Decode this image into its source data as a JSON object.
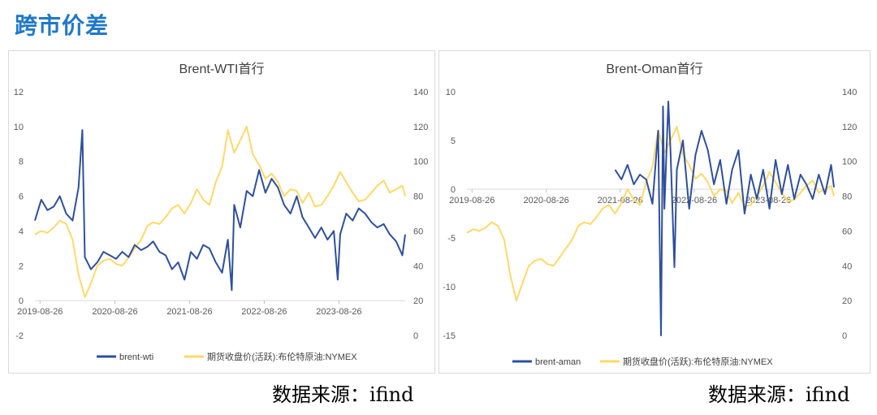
{
  "page": {
    "title": "跨市价差"
  },
  "sources": [
    "数据来源：ifind",
    "数据来源：ifind"
  ],
  "colors": {
    "series_primary": "#2e4f9e",
    "series_secondary": "#ffd966",
    "axis_text": "#595959"
  },
  "chart_data": [
    {
      "type": "line",
      "title": "Brent-WTI首行",
      "x_ticks": [
        "2019-08-26",
        "2020-08-26",
        "2021-08-26",
        "2022-08-26",
        "2023-08-26"
      ],
      "y_left": {
        "min": -2,
        "max": 12,
        "ticks": [
          -2,
          0,
          2,
          4,
          6,
          8,
          10,
          12
        ]
      },
      "y_right": {
        "min": 0,
        "max": 140,
        "ticks": [
          0,
          20,
          40,
          60,
          80,
          100,
          120,
          140
        ]
      },
      "x_range": [
        "2019-08-01",
        "2024-07-15"
      ],
      "grid": false,
      "legend_position": "bottom",
      "series": [
        {
          "name": "brent-wti",
          "axis": "left",
          "color": "#2e4f9e",
          "points": [
            [
              "2019-08-01",
              4.6
            ],
            [
              "2019-09-01",
              5.8
            ],
            [
              "2019-10-01",
              5.2
            ],
            [
              "2019-11-01",
              5.4
            ],
            [
              "2019-12-01",
              6.0
            ],
            [
              "2020-01-01",
              5.0
            ],
            [
              "2020-02-01",
              4.6
            ],
            [
              "2020-03-01",
              6.5
            ],
            [
              "2020-03-20",
              9.8
            ],
            [
              "2020-04-01",
              2.5
            ],
            [
              "2020-05-01",
              1.8
            ],
            [
              "2020-06-01",
              2.2
            ],
            [
              "2020-07-01",
              2.8
            ],
            [
              "2020-08-01",
              2.6
            ],
            [
              "2020-09-01",
              2.4
            ],
            [
              "2020-10-01",
              2.8
            ],
            [
              "2020-11-01",
              2.5
            ],
            [
              "2020-12-01",
              3.2
            ],
            [
              "2021-01-01",
              2.9
            ],
            [
              "2021-02-01",
              3.1
            ],
            [
              "2021-03-01",
              3.4
            ],
            [
              "2021-04-01",
              2.8
            ],
            [
              "2021-05-01",
              2.6
            ],
            [
              "2021-06-01",
              1.8
            ],
            [
              "2021-07-01",
              2.2
            ],
            [
              "2021-08-01",
              1.2
            ],
            [
              "2021-09-01",
              2.8
            ],
            [
              "2021-10-01",
              2.4
            ],
            [
              "2021-11-01",
              3.2
            ],
            [
              "2021-12-01",
              3.0
            ],
            [
              "2022-01-01",
              2.2
            ],
            [
              "2022-02-01",
              1.6
            ],
            [
              "2022-03-01",
              3.5
            ],
            [
              "2022-03-20",
              0.6
            ],
            [
              "2022-04-01",
              5.5
            ],
            [
              "2022-05-01",
              4.2
            ],
            [
              "2022-06-01",
              6.3
            ],
            [
              "2022-07-01",
              6.0
            ],
            [
              "2022-08-01",
              7.5
            ],
            [
              "2022-09-01",
              6.2
            ],
            [
              "2022-10-01",
              7.0
            ],
            [
              "2022-11-01",
              6.5
            ],
            [
              "2022-12-01",
              5.5
            ],
            [
              "2023-01-01",
              5.0
            ],
            [
              "2023-02-01",
              6.0
            ],
            [
              "2023-03-01",
              4.8
            ],
            [
              "2023-04-01",
              4.2
            ],
            [
              "2023-05-01",
              3.6
            ],
            [
              "2023-06-01",
              4.2
            ],
            [
              "2023-07-01",
              3.5
            ],
            [
              "2023-08-01",
              4.0
            ],
            [
              "2023-08-20",
              1.2
            ],
            [
              "2023-09-01",
              3.8
            ],
            [
              "2023-10-01",
              5.0
            ],
            [
              "2023-11-01",
              4.6
            ],
            [
              "2023-12-01",
              5.3
            ],
            [
              "2024-01-01",
              5.0
            ],
            [
              "2024-02-01",
              4.5
            ],
            [
              "2024-03-01",
              4.2
            ],
            [
              "2024-04-01",
              4.4
            ],
            [
              "2024-05-01",
              3.8
            ],
            [
              "2024-06-01",
              3.4
            ],
            [
              "2024-07-01",
              2.6
            ],
            [
              "2024-07-15",
              3.8
            ]
          ]
        },
        {
          "name": "期货收盘价(活跃):布伦特原油:NYMEX",
          "axis": "right",
          "color": "#ffd966",
          "points": [
            [
              "2019-08-01",
              58
            ],
            [
              "2019-09-01",
              60
            ],
            [
              "2019-10-01",
              59
            ],
            [
              "2019-11-01",
              62
            ],
            [
              "2019-12-01",
              66
            ],
            [
              "2020-01-01",
              64
            ],
            [
              "2020-02-01",
              55
            ],
            [
              "2020-03-01",
              35
            ],
            [
              "2020-04-01",
              22
            ],
            [
              "2020-05-01",
              30
            ],
            [
              "2020-06-01",
              40
            ],
            [
              "2020-07-01",
              43
            ],
            [
              "2020-08-01",
              44
            ],
            [
              "2020-09-01",
              41
            ],
            [
              "2020-10-01",
              40
            ],
            [
              "2020-11-01",
              45
            ],
            [
              "2020-12-01",
              50
            ],
            [
              "2021-01-01",
              55
            ],
            [
              "2021-02-01",
              63
            ],
            [
              "2021-03-01",
              65
            ],
            [
              "2021-04-01",
              64
            ],
            [
              "2021-05-01",
              68
            ],
            [
              "2021-06-01",
              73
            ],
            [
              "2021-07-01",
              75
            ],
            [
              "2021-08-01",
              70
            ],
            [
              "2021-09-01",
              76
            ],
            [
              "2021-10-01",
              84
            ],
            [
              "2021-11-01",
              78
            ],
            [
              "2021-12-01",
              75
            ],
            [
              "2022-01-01",
              88
            ],
            [
              "2022-02-01",
              97
            ],
            [
              "2022-03-01",
              118
            ],
            [
              "2022-04-01",
              105
            ],
            [
              "2022-05-01",
              112
            ],
            [
              "2022-06-01",
              120
            ],
            [
              "2022-07-01",
              104
            ],
            [
              "2022-08-01",
              98
            ],
            [
              "2022-09-01",
              90
            ],
            [
              "2022-10-01",
              93
            ],
            [
              "2022-11-01",
              88
            ],
            [
              "2022-12-01",
              80
            ],
            [
              "2023-01-01",
              84
            ],
            [
              "2023-02-01",
              83
            ],
            [
              "2023-03-01",
              76
            ],
            [
              "2023-04-01",
              82
            ],
            [
              "2023-05-01",
              74
            ],
            [
              "2023-06-01",
              75
            ],
            [
              "2023-07-01",
              80
            ],
            [
              "2023-08-01",
              86
            ],
            [
              "2023-09-01",
              94
            ],
            [
              "2023-10-01",
              88
            ],
            [
              "2023-11-01",
              82
            ],
            [
              "2023-12-01",
              77
            ],
            [
              "2024-01-01",
              78
            ],
            [
              "2024-02-01",
              82
            ],
            [
              "2024-03-01",
              86
            ],
            [
              "2024-04-01",
              89
            ],
            [
              "2024-05-01",
              82
            ],
            [
              "2024-06-01",
              84
            ],
            [
              "2024-07-01",
              86
            ],
            [
              "2024-07-15",
              80
            ]
          ]
        }
      ]
    },
    {
      "type": "line",
      "title": "Brent-Oman首行",
      "x_ticks": [
        "2019-08-26",
        "2020-08-26",
        "2021-08-26",
        "2022-08-26",
        "2023-08-26"
      ],
      "y_left": {
        "min": -15,
        "max": 10,
        "ticks": [
          -15,
          -10,
          -5,
          0,
          5,
          10
        ]
      },
      "y_right": {
        "min": 0,
        "max": 140,
        "ticks": [
          0,
          20,
          40,
          60,
          80,
          100,
          120,
          140
        ]
      },
      "x_range": [
        "2019-08-01",
        "2024-07-15"
      ],
      "grid": false,
      "legend_position": "bottom",
      "series": [
        {
          "name": "brent-aman",
          "axis": "left",
          "color": "#2e4f9e",
          "points": [
            [
              "2021-08-01",
              2.0
            ],
            [
              "2021-09-01",
              1.0
            ],
            [
              "2021-10-01",
              2.5
            ],
            [
              "2021-11-01",
              0.5
            ],
            [
              "2021-12-01",
              1.5
            ],
            [
              "2022-01-01",
              1.0
            ],
            [
              "2022-02-01",
              -1.5
            ],
            [
              "2022-03-01",
              6.0
            ],
            [
              "2022-03-15",
              -15.0
            ],
            [
              "2022-03-25",
              8.5
            ],
            [
              "2022-04-01",
              -2.0
            ],
            [
              "2022-04-20",
              9.0
            ],
            [
              "2022-05-01",
              4.0
            ],
            [
              "2022-05-20",
              -8.0
            ],
            [
              "2022-06-01",
              2.0
            ],
            [
              "2022-07-01",
              5.0
            ],
            [
              "2022-08-01",
              -2.0
            ],
            [
              "2022-09-01",
              3.5
            ],
            [
              "2022-10-01",
              6.0
            ],
            [
              "2022-11-01",
              4.0
            ],
            [
              "2022-12-01",
              0.5
            ],
            [
              "2023-01-01",
              3.0
            ],
            [
              "2023-02-01",
              -1.5
            ],
            [
              "2023-03-01",
              2.0
            ],
            [
              "2023-04-01",
              4.0
            ],
            [
              "2023-05-01",
              -2.5
            ],
            [
              "2023-06-01",
              1.5
            ],
            [
              "2023-07-01",
              -1.0
            ],
            [
              "2023-08-01",
              2.0
            ],
            [
              "2023-09-01",
              -2.0
            ],
            [
              "2023-10-01",
              3.0
            ],
            [
              "2023-11-01",
              -0.5
            ],
            [
              "2023-12-01",
              2.5
            ],
            [
              "2024-01-01",
              -1.0
            ],
            [
              "2024-02-01",
              1.5
            ],
            [
              "2024-03-01",
              0.5
            ],
            [
              "2024-04-01",
              -1.0
            ],
            [
              "2024-05-01",
              1.5
            ],
            [
              "2024-06-01",
              -0.5
            ],
            [
              "2024-07-01",
              2.5
            ],
            [
              "2024-07-15",
              0.2
            ]
          ]
        },
        {
          "name": "期货收盘价(活跃):布伦特原油:NYMEX",
          "axis": "right",
          "color": "#ffd966",
          "points": [
            [
              "2019-08-01",
              59
            ],
            [
              "2019-09-01",
              61
            ],
            [
              "2019-10-01",
              60
            ],
            [
              "2019-11-01",
              62
            ],
            [
              "2019-12-01",
              65
            ],
            [
              "2020-01-01",
              63
            ],
            [
              "2020-02-01",
              55
            ],
            [
              "2020-03-01",
              35
            ],
            [
              "2020-04-01",
              20
            ],
            [
              "2020-05-01",
              30
            ],
            [
              "2020-06-01",
              40
            ],
            [
              "2020-07-01",
              43
            ],
            [
              "2020-08-01",
              44
            ],
            [
              "2020-09-01",
              41
            ],
            [
              "2020-10-01",
              40
            ],
            [
              "2020-11-01",
              45
            ],
            [
              "2020-12-01",
              50
            ],
            [
              "2021-01-01",
              55
            ],
            [
              "2021-02-01",
              63
            ],
            [
              "2021-03-01",
              65
            ],
            [
              "2021-04-01",
              64
            ],
            [
              "2021-05-01",
              68
            ],
            [
              "2021-06-01",
              73
            ],
            [
              "2021-07-01",
              75
            ],
            [
              "2021-08-01",
              70
            ],
            [
              "2021-09-01",
              76
            ],
            [
              "2021-10-01",
              84
            ],
            [
              "2021-11-01",
              78
            ],
            [
              "2021-12-01",
              75
            ],
            [
              "2022-01-01",
              88
            ],
            [
              "2022-02-01",
              97
            ],
            [
              "2022-03-01",
              118
            ],
            [
              "2022-04-01",
              105
            ],
            [
              "2022-05-01",
              112
            ],
            [
              "2022-06-01",
              120
            ],
            [
              "2022-07-01",
              104
            ],
            [
              "2022-08-01",
              98
            ],
            [
              "2022-09-01",
              90
            ],
            [
              "2022-10-01",
              93
            ],
            [
              "2022-11-01",
              88
            ],
            [
              "2022-12-01",
              80
            ],
            [
              "2023-01-01",
              84
            ],
            [
              "2023-02-01",
              83
            ],
            [
              "2023-03-01",
              76
            ],
            [
              "2023-04-01",
              82
            ],
            [
              "2023-05-01",
              74
            ],
            [
              "2023-06-01",
              75
            ],
            [
              "2023-07-01",
              80
            ],
            [
              "2023-08-01",
              86
            ],
            [
              "2023-09-01",
              94
            ],
            [
              "2023-10-01",
              88
            ],
            [
              "2023-11-01",
              82
            ],
            [
              "2023-12-01",
              77
            ],
            [
              "2024-01-01",
              78
            ],
            [
              "2024-02-01",
              82
            ],
            [
              "2024-03-01",
              86
            ],
            [
              "2024-04-01",
              89
            ],
            [
              "2024-05-01",
              82
            ],
            [
              "2024-06-01",
              84
            ],
            [
              "2024-07-01",
              86
            ],
            [
              "2024-07-15",
              80
            ]
          ]
        }
      ]
    }
  ]
}
